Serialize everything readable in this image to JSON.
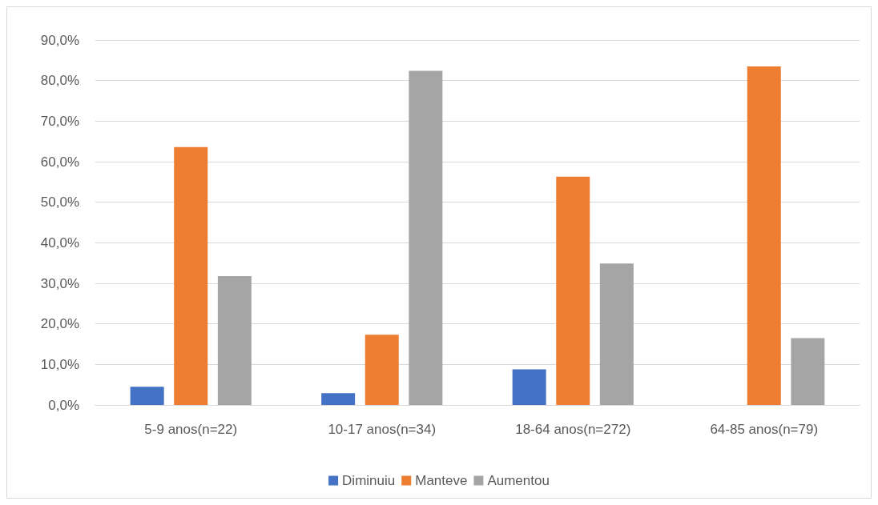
{
  "chart_data": {
    "type": "bar",
    "categories": [
      "5-9 anos(n=22)",
      "10-17 anos(n=34)",
      "18-64 anos(n=272)",
      "64-85 anos(n=79)"
    ],
    "series": [
      {
        "name": "Diminuiu",
        "color": "#4472c4",
        "values": [
          4.5,
          2.9,
          8.8,
          0
        ]
      },
      {
        "name": "Manteve",
        "color": "#ed7d31",
        "values": [
          63.6,
          17.3,
          56.3,
          83.5
        ]
      },
      {
        "name": "Aumentou",
        "color": "#a5a5a5",
        "values": [
          31.8,
          82.4,
          34.9,
          16.5
        ]
      }
    ],
    "ylim": [
      0,
      90
    ],
    "yticks": [
      {
        "value": 0,
        "label": "0,0%"
      },
      {
        "value": 10,
        "label": "10,0%"
      },
      {
        "value": 20,
        "label": "20,0%"
      },
      {
        "value": 30,
        "label": "30,0%"
      },
      {
        "value": 40,
        "label": "40,0%"
      },
      {
        "value": 50,
        "label": "50,0%"
      },
      {
        "value": 60,
        "label": "60,0%"
      },
      {
        "value": 70,
        "label": "70,0%"
      },
      {
        "value": 80,
        "label": "80,0%"
      },
      {
        "value": 90,
        "label": "90,0%"
      }
    ],
    "grid": "y",
    "legend": "bottom"
  }
}
